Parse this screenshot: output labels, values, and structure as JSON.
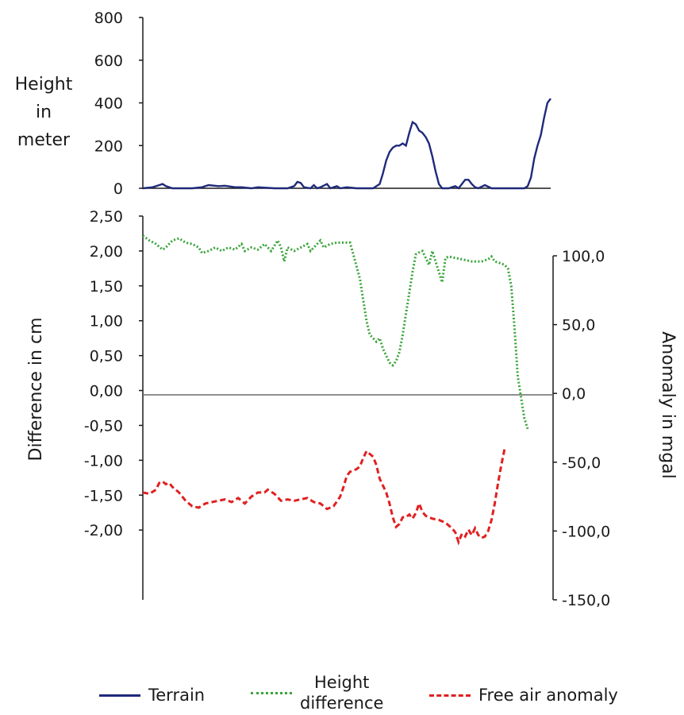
{
  "chart_data": [
    {
      "type": "line",
      "panel": "top",
      "ylabel": "Height in meter",
      "ylim": [
        0,
        800
      ],
      "yticks": [
        "0",
        "200",
        "400",
        "600",
        "800"
      ],
      "grid": false,
      "series": [
        {
          "name": "Terrain",
          "color": "#1f2a7a",
          "style": "solid",
          "points": [
            [
              0,
              0
            ],
            [
              3,
              5
            ],
            [
              5,
              15
            ],
            [
              6,
              20
            ],
            [
              7,
              10
            ],
            [
              9,
              0
            ],
            [
              15,
              0
            ],
            [
              18,
              5
            ],
            [
              20,
              15
            ],
            [
              23,
              10
            ],
            [
              25,
              12
            ],
            [
              28,
              5
            ],
            [
              30,
              5
            ],
            [
              33,
              0
            ],
            [
              35,
              5
            ],
            [
              40,
              0
            ],
            [
              44,
              0
            ],
            [
              46,
              10
            ],
            [
              47,
              30
            ],
            [
              48,
              25
            ],
            [
              49,
              5
            ],
            [
              51,
              0
            ],
            [
              52,
              15
            ],
            [
              53,
              0
            ],
            [
              54,
              5
            ],
            [
              56,
              20
            ],
            [
              57,
              0
            ],
            [
              59,
              10
            ],
            [
              60,
              0
            ],
            [
              62,
              5
            ],
            [
              65,
              0
            ],
            [
              70,
              0
            ],
            [
              72,
              20
            ],
            [
              73,
              70
            ],
            [
              74,
              130
            ],
            [
              75,
              170
            ],
            [
              76,
              190
            ],
            [
              77,
              200
            ],
            [
              78,
              200
            ],
            [
              79,
              210
            ],
            [
              80,
              200
            ],
            [
              81,
              260
            ],
            [
              82,
              310
            ],
            [
              83,
              300
            ],
            [
              84,
              270
            ],
            [
              85,
              260
            ],
            [
              86,
              240
            ],
            [
              87,
              210
            ],
            [
              88,
              150
            ],
            [
              89,
              80
            ],
            [
              90,
              20
            ],
            [
              91,
              0
            ],
            [
              93,
              0
            ],
            [
              94,
              5
            ],
            [
              95,
              10
            ],
            [
              96,
              0
            ],
            [
              97,
              20
            ],
            [
              98,
              40
            ],
            [
              99,
              40
            ],
            [
              100,
              20
            ],
            [
              101,
              5
            ],
            [
              102,
              0
            ],
            [
              104,
              15
            ],
            [
              106,
              0
            ],
            [
              110,
              0
            ],
            [
              114,
              0
            ],
            [
              116,
              0
            ],
            [
              117,
              10
            ],
            [
              118,
              50
            ],
            [
              119,
              140
            ],
            [
              120,
              200
            ],
            [
              121,
              250
            ],
            [
              122,
              330
            ],
            [
              123,
              400
            ],
            [
              124,
              420
            ]
          ]
        }
      ]
    },
    {
      "type": "line",
      "panel": "bottom",
      "ylabel": "Difference in cm",
      "ylim": [
        -3.0,
        2.5
      ],
      "yticks": [
        "-2,00",
        "-1,50",
        "-1,00",
        "-0,50",
        "0,00",
        "0,50",
        "1,00",
        "1,50",
        "2,00",
        "2,50"
      ],
      "y2label": "Anomaly in mgal",
      "y2lim": [
        -150,
        100
      ],
      "y2ticks": [
        "-150,0",
        "-100,0",
        "-50,0",
        "0,0",
        "50,0",
        "100,0"
      ],
      "grid": false,
      "series": [
        {
          "name": "Height difference",
          "axis": "left",
          "color": "#3aa53a",
          "style": "dotted",
          "points": [
            [
              0,
              2.22
            ],
            [
              2,
              2.15
            ],
            [
              4,
              2.1
            ],
            [
              6,
              2.02
            ],
            [
              7,
              2.05
            ],
            [
              9,
              2.15
            ],
            [
              11,
              2.18
            ],
            [
              13,
              2.12
            ],
            [
              15,
              2.1
            ],
            [
              17,
              2.05
            ],
            [
              18,
              1.97
            ],
            [
              20,
              2.0
            ],
            [
              22,
              2.05
            ],
            [
              24,
              2.0
            ],
            [
              26,
              2.05
            ],
            [
              28,
              2.02
            ],
            [
              30,
              2.1
            ],
            [
              31,
              2.0
            ],
            [
              33,
              2.05
            ],
            [
              35,
              2.02
            ],
            [
              37,
              2.1
            ],
            [
              39,
              2.0
            ],
            [
              41,
              2.15
            ],
            [
              42,
              2.05
            ],
            [
              43,
              1.85
            ],
            [
              44,
              2.05
            ],
            [
              46,
              2.0
            ],
            [
              48,
              2.05
            ],
            [
              50,
              2.1
            ],
            [
              51,
              2.0
            ],
            [
              53,
              2.1
            ],
            [
              54,
              2.15
            ],
            [
              55,
              2.05
            ],
            [
              57,
              2.1
            ],
            [
              59,
              2.12
            ],
            [
              61,
              2.12
            ],
            [
              63,
              2.12
            ],
            [
              64,
              1.95
            ],
            [
              66,
              1.6
            ],
            [
              67,
              1.3
            ],
            [
              68,
              1.0
            ],
            [
              69,
              0.8
            ],
            [
              70,
              0.75
            ],
            [
              71,
              0.7
            ],
            [
              72,
              0.75
            ],
            [
              73,
              0.6
            ],
            [
              74,
              0.5
            ],
            [
              75,
              0.4
            ],
            [
              76,
              0.36
            ],
            [
              77,
              0.42
            ],
            [
              78,
              0.55
            ],
            [
              79,
              0.8
            ],
            [
              80,
              1.1
            ],
            [
              81,
              1.4
            ],
            [
              82,
              1.7
            ],
            [
              83,
              1.95
            ],
            [
              84,
              1.98
            ],
            [
              85,
              2.0
            ],
            [
              86,
              1.9
            ],
            [
              87,
              1.8
            ],
            [
              88,
              2.0
            ],
            [
              89,
              1.85
            ],
            [
              90,
              1.7
            ],
            [
              91,
              1.55
            ],
            [
              92,
              1.9
            ],
            [
              93,
              1.92
            ],
            [
              95,
              1.9
            ],
            [
              97,
              1.88
            ],
            [
              100,
              1.85
            ],
            [
              103,
              1.85
            ],
            [
              105,
              1.88
            ],
            [
              106,
              1.92
            ],
            [
              107,
              1.85
            ],
            [
              109,
              1.82
            ],
            [
              110,
              1.8
            ],
            [
              111,
              1.75
            ],
            [
              112,
              1.5
            ],
            [
              113,
              0.9
            ],
            [
              114,
              0.2
            ],
            [
              115,
              -0.1
            ],
            [
              116,
              -0.4
            ],
            [
              117,
              -0.55
            ]
          ]
        },
        {
          "name": "Free air anomaly",
          "axis": "right",
          "color": "#e02020",
          "style": "dashed",
          "points": [
            [
              0,
              -72
            ],
            [
              2,
              -73
            ],
            [
              4,
              -70
            ],
            [
              5,
              -65
            ],
            [
              6,
              -64
            ],
            [
              7,
              -66
            ],
            [
              8,
              -65
            ],
            [
              9,
              -68
            ],
            [
              11,
              -72
            ],
            [
              13,
              -78
            ],
            [
              15,
              -82
            ],
            [
              17,
              -83
            ],
            [
              19,
              -80
            ],
            [
              21,
              -79
            ],
            [
              23,
              -78
            ],
            [
              25,
              -77
            ],
            [
              27,
              -79
            ],
            [
              29,
              -76
            ],
            [
              31,
              -80
            ],
            [
              33,
              -75
            ],
            [
              35,
              -72
            ],
            [
              37,
              -72
            ],
            [
              38,
              -70
            ],
            [
              40,
              -73
            ],
            [
              42,
              -78
            ],
            [
              44,
              -77
            ],
            [
              46,
              -78
            ],
            [
              48,
              -77
            ],
            [
              50,
              -76
            ],
            [
              52,
              -79
            ],
            [
              54,
              -80
            ],
            [
              56,
              -84
            ],
            [
              58,
              -82
            ],
            [
              60,
              -75
            ],
            [
              61,
              -68
            ],
            [
              62,
              -60
            ],
            [
              63,
              -57
            ],
            [
              64,
              -56
            ],
            [
              65,
              -55
            ],
            [
              66,
              -53
            ],
            [
              67,
              -47
            ],
            [
              68,
              -42
            ],
            [
              69,
              -44
            ],
            [
              70,
              -46
            ],
            [
              71,
              -52
            ],
            [
              72,
              -62
            ],
            [
              74,
              -72
            ],
            [
              75,
              -80
            ],
            [
              76,
              -90
            ],
            [
              77,
              -97
            ],
            [
              78,
              -95
            ],
            [
              79,
              -90
            ],
            [
              80,
              -90
            ],
            [
              81,
              -88
            ],
            [
              82,
              -91
            ],
            [
              83,
              -87
            ],
            [
              84,
              -80
            ],
            [
              85,
              -86
            ],
            [
              86,
              -89
            ],
            [
              88,
              -91
            ],
            [
              90,
              -92
            ],
            [
              92,
              -94
            ],
            [
              94,
              -98
            ],
            [
              95,
              -101
            ],
            [
              96,
              -108
            ],
            [
              97,
              -102
            ],
            [
              98,
              -104
            ],
            [
              99,
              -99
            ],
            [
              100,
              -103
            ],
            [
              101,
              -98
            ],
            [
              102,
              -103
            ],
            [
              103,
              -105
            ],
            [
              104,
              -104
            ],
            [
              105,
              -100
            ],
            [
              106,
              -92
            ],
            [
              107,
              -80
            ],
            [
              108,
              -65
            ],
            [
              109,
              -52
            ],
            [
              110,
              -40
            ]
          ]
        }
      ]
    }
  ],
  "legend": {
    "terrain": "Terrain",
    "height_line1": "Height",
    "height_line2": "difference",
    "anomaly": "Free air anomaly"
  },
  "colors": {
    "terrain": "#1f2a7a",
    "height_difference": "#3aa53a",
    "anomaly": "#e02020",
    "axis": "#1a1a1a"
  }
}
